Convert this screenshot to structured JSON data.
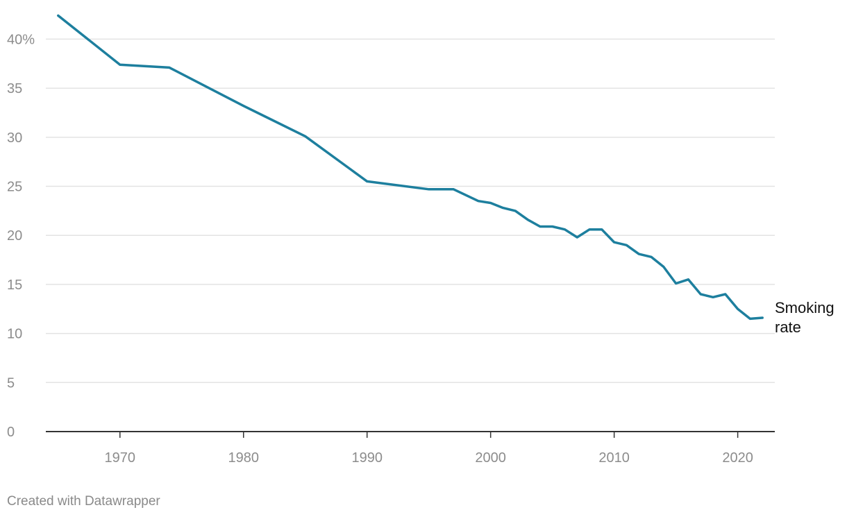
{
  "chart_data": {
    "type": "line",
    "x": [
      1965,
      1970,
      1974,
      1980,
      1985,
      1990,
      1995,
      1997,
      1999,
      2000,
      2001,
      2002,
      2003,
      2004,
      2005,
      2006,
      2007,
      2008,
      2009,
      2010,
      2011,
      2012,
      2013,
      2014,
      2015,
      2016,
      2017,
      2018,
      2019,
      2020,
      2021,
      2022
    ],
    "series": [
      {
        "name": "Smoking rate",
        "values": [
          42.4,
          37.4,
          37.1,
          33.2,
          30.1,
          25.5,
          24.7,
          24.7,
          23.5,
          23.3,
          22.8,
          22.5,
          21.6,
          20.9,
          20.9,
          20.6,
          19.8,
          20.6,
          20.6,
          19.3,
          19.0,
          18.1,
          17.8,
          16.8,
          15.1,
          15.5,
          14.0,
          13.7,
          14.0,
          12.5,
          11.5,
          11.6
        ]
      }
    ],
    "series_label_lines": [
      "Smoking",
      "rate"
    ],
    "xlim": [
      1964,
      2023
    ],
    "ylim": [
      0,
      43
    ],
    "xticks": [
      1970,
      1980,
      1990,
      2000,
      2010,
      2020
    ],
    "xtick_labels": [
      "1970",
      "1980",
      "1990",
      "2000",
      "2010",
      "2020"
    ],
    "yticks": [
      0,
      5,
      10,
      15,
      20,
      25,
      30,
      35,
      40
    ],
    "ytick_labels": [
      "0",
      "5",
      "10",
      "15",
      "20",
      "25",
      "30",
      "35",
      "40%"
    ],
    "grid": true,
    "line_color": "#1d7f9e",
    "grid_color": "#e3e3e3",
    "axis_color": "#333333",
    "tick_label_color": "#8c8c8c",
    "label_color": "#111111"
  },
  "footer": {
    "credit": "Created with Datawrapper"
  }
}
